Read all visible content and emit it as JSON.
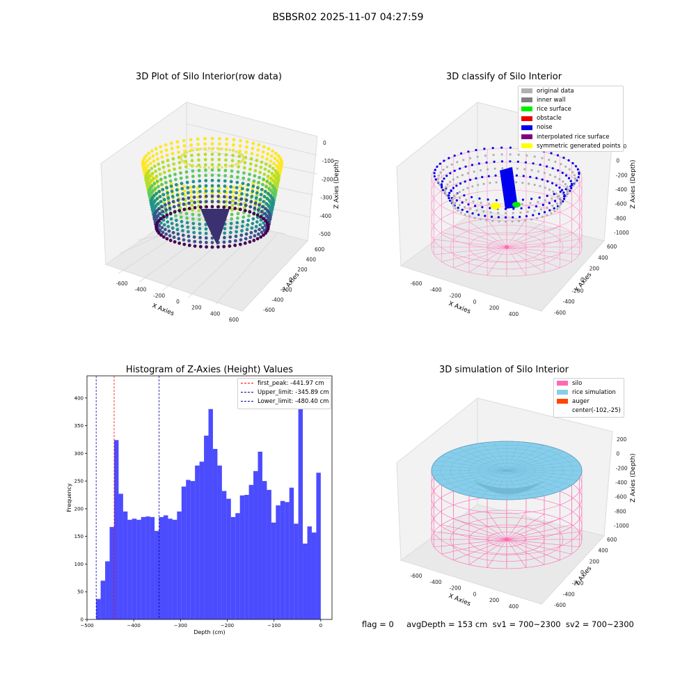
{
  "figure": {
    "suptitle": "BSBSR02 2025-11-07 04:27:59"
  },
  "chart_data": [
    {
      "type": "scatter3d",
      "title": "3D Plot of Silo Interior(row data)",
      "xlabel": "X Axies",
      "ylabel": "Y Axies",
      "zlabel": "Z Axies (Depth)",
      "x_ticks": [
        "-600",
        "-400",
        "-200",
        "0",
        "200",
        "400",
        "600"
      ],
      "y_ticks": [
        "-600",
        "-400",
        "-200",
        "0",
        "200",
        "400",
        "600"
      ],
      "z_ticks": [
        "-500",
        "-400",
        "-300",
        "-200",
        "-100",
        "0"
      ],
      "zlim": [
        -500,
        0
      ],
      "colormap": "viridis"
    },
    {
      "type": "scatter3d",
      "title": "3D classify of Silo Interior",
      "xlabel": "X Axies",
      "ylabel": "Y Axies",
      "zlabel": "Z Axies (Depth)",
      "x_ticks": [
        "-600",
        "-400",
        "-200",
        "0",
        "200",
        "400"
      ],
      "y_ticks": [
        "-600",
        "-400",
        "-200",
        "0",
        "200",
        "400",
        "600"
      ],
      "z_ticks": [
        "-1000",
        "-800",
        "-600",
        "-400",
        "-200",
        "0",
        "200"
      ],
      "legend": [
        {
          "label": "original data",
          "color": "#b0b0b0"
        },
        {
          "label": "inner wall",
          "color": "#808080"
        },
        {
          "label": "rice surface",
          "color": "#00ee00"
        },
        {
          "label": "obstacle",
          "color": "#ee0000"
        },
        {
          "label": "noise",
          "color": "#0000ee"
        },
        {
          "label": "interpolated rice surface",
          "color": "#800080"
        },
        {
          "label": "symmetric generated points",
          "color": "#ffff00"
        }
      ]
    },
    {
      "type": "bar",
      "title": "Histogram of Z-Axies (Height) Values",
      "xlabel": "Depth (cm)",
      "ylabel": "Frequency",
      "xlim": [
        -500,
        24
      ],
      "ylim": [
        0,
        440
      ],
      "x_ticks": [
        -500,
        -400,
        -300,
        -200,
        -100,
        0
      ],
      "y_ticks": [
        0,
        50,
        100,
        150,
        200,
        250,
        300,
        350,
        400
      ],
      "bin_start": -480.4,
      "bin_width": 9.608,
      "bar_color": "#0000ff",
      "values": [
        37,
        70,
        105,
        167,
        324,
        227,
        195,
        180,
        182,
        180,
        185,
        186,
        185,
        160,
        185,
        188,
        182,
        180,
        195,
        240,
        252,
        250,
        278,
        285,
        332,
        380,
        308,
        278,
        232,
        218,
        185,
        192,
        224,
        225,
        243,
        268,
        303,
        250,
        234,
        175,
        206,
        214,
        212,
        238,
        173,
        400,
        137,
        168,
        157,
        265
      ],
      "vlines": [
        {
          "label": "first_peak: -441.97 cm",
          "x": -441.97,
          "color": "#ff0000"
        },
        {
          "label": "Upper_limit: -345.89 cm",
          "x": -345.89,
          "color": "#0000aa"
        },
        {
          "label": "Lower_limit: -480.40 cm",
          "x": -480.4,
          "color": "#0000aa"
        }
      ]
    },
    {
      "type": "surface3d",
      "title": "3D simulation of Silo Interior",
      "xlabel": "X Axies",
      "ylabel": "Y Axies",
      "zlabel": "Z Axies (Depth)",
      "x_ticks": [
        "-600",
        "-400",
        "-200",
        "0",
        "200",
        "400"
      ],
      "y_ticks": [
        "-600",
        "-400",
        "-200",
        "0",
        "200",
        "400",
        "600"
      ],
      "z_ticks": [
        "-1000",
        "-800",
        "-600",
        "-400",
        "-200",
        "0",
        "200"
      ],
      "legend": [
        {
          "label": "silo",
          "color": "#ff69b4"
        },
        {
          "label": "rice simulation",
          "color": "#87ceeb"
        },
        {
          "label": "auger",
          "color": "#ff4500"
        },
        {
          "label": "center(-102,-25)",
          "color": ""
        }
      ]
    }
  ],
  "status": {
    "text": "flag = 0     avgDepth = 153 cm  sv1 = 700~2300  sv2 = 700~2300"
  }
}
